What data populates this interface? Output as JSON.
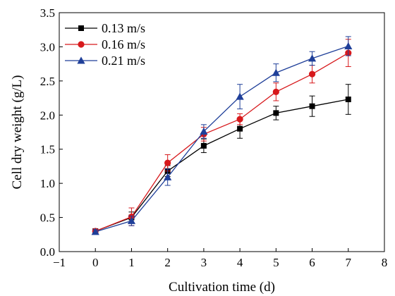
{
  "chart_data": {
    "type": "line",
    "xlabel": "Cultivation time (d)",
    "ylabel": "Cell dry weight (g/L)",
    "xlim": [
      -1,
      8
    ],
    "ylim": [
      0.0,
      3.5
    ],
    "xticks": [
      -1,
      0,
      1,
      2,
      3,
      4,
      5,
      6,
      7,
      8
    ],
    "yticks": [
      0.0,
      0.5,
      1.0,
      1.5,
      2.0,
      2.5,
      3.0,
      3.5
    ],
    "xtick_labels": [
      "−1",
      "0",
      "1",
      "2",
      "3",
      "4",
      "5",
      "6",
      "7",
      "8"
    ],
    "ytick_labels": [
      "0.0",
      "0.5",
      "1.0",
      "1.5",
      "2.0",
      "2.5",
      "3.0",
      "3.5"
    ],
    "grid": false,
    "legend_position": "top-left",
    "x": [
      0,
      1,
      2,
      3,
      4,
      5,
      6,
      7
    ],
    "series": [
      {
        "name": "0.13 m/s",
        "color": "#000000",
        "marker": "square",
        "values": [
          0.3,
          0.5,
          1.18,
          1.55,
          1.8,
          2.03,
          2.13,
          2.23
        ],
        "errors": [
          0.03,
          0.08,
          0.08,
          0.1,
          0.14,
          0.1,
          0.15,
          0.22
        ]
      },
      {
        "name": "0.16 m/s",
        "color": "#d7191c",
        "marker": "circle",
        "values": [
          0.3,
          0.51,
          1.3,
          1.72,
          1.94,
          2.34,
          2.6,
          2.91
        ],
        "errors": [
          0.03,
          0.13,
          0.12,
          0.1,
          0.08,
          0.13,
          0.13,
          0.2
        ]
      },
      {
        "name": "0.21 m/s",
        "color": "#1f3f99",
        "marker": "triangle",
        "values": [
          0.29,
          0.45,
          1.09,
          1.76,
          2.27,
          2.62,
          2.83,
          3.01
        ],
        "errors": [
          0.03,
          0.07,
          0.12,
          0.1,
          0.18,
          0.13,
          0.1,
          0.14
        ]
      }
    ]
  }
}
